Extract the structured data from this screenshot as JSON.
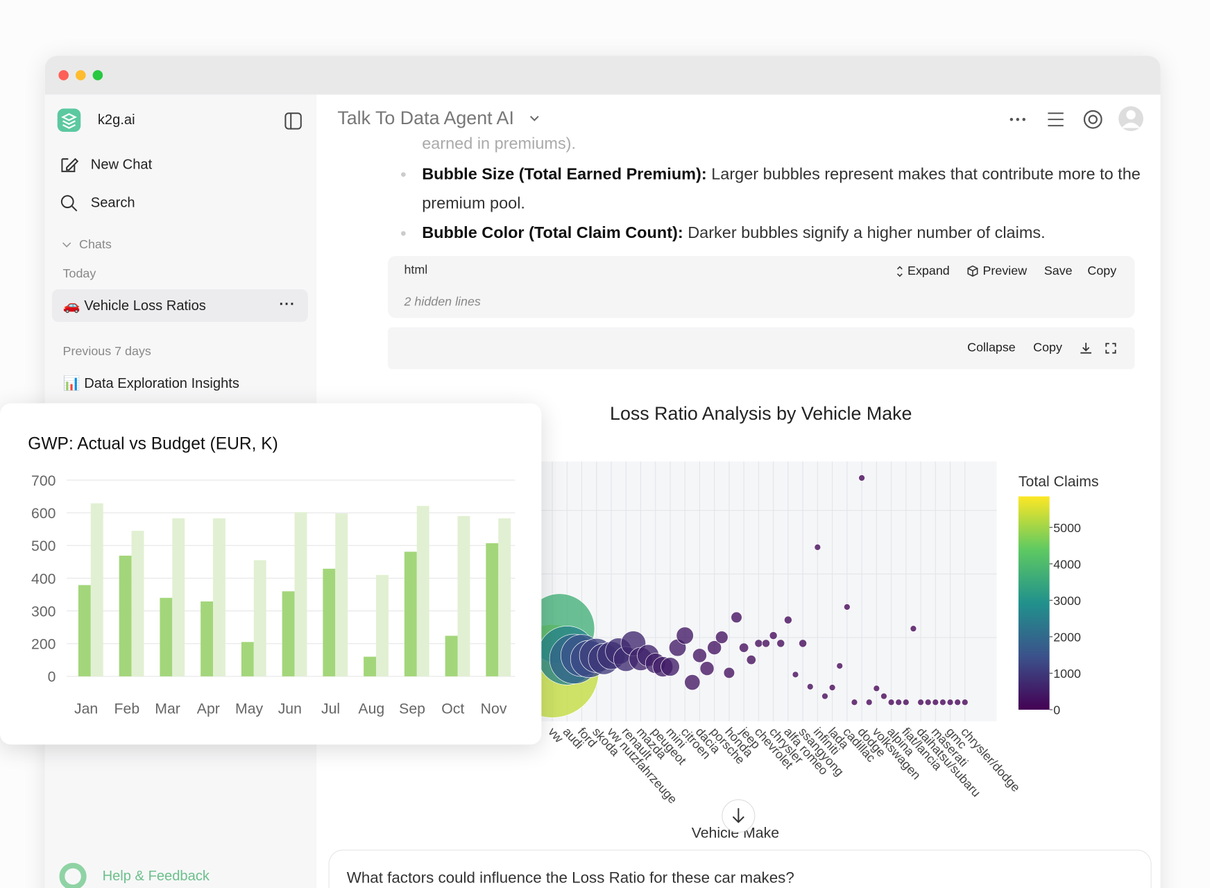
{
  "sidebar": {
    "brand": "k2g.ai",
    "new_chat": "New Chat",
    "search": "Search",
    "chats_heading": "Chats",
    "today_heading": "Today",
    "today_items": [
      "🚗 Vehicle Loss Ratios"
    ],
    "previous_heading": "Previous 7 days",
    "previous_items": [
      "📊 Data Exploration Insights"
    ],
    "help": "Help & Feedback"
  },
  "header": {
    "title": "Talk To Data Agent AI"
  },
  "message": {
    "partial": "earned in premiums).",
    "bullets": [
      {
        "term": "Bubble Size (Total Earned Premium):",
        "text": " Larger bubbles represent makes that contribute more to the premium pool."
      },
      {
        "term": "Bubble Color (Total Claim Count):",
        "text": " Darker bubbles signify a higher number of claims."
      }
    ]
  },
  "code_block": {
    "language": "html",
    "actions": [
      "Expand",
      "Preview",
      "Save",
      "Copy"
    ],
    "hidden": "2 hidden lines"
  },
  "preview_bar": {
    "actions": [
      "Collapse",
      "Copy"
    ]
  },
  "followup": "What factors could influence the Loss Ratio for these car makes?",
  "chart_data": [
    {
      "type": "bubble",
      "title": "Loss Ratio Analysis by Vehicle Make",
      "x_label": "Vehicle Make",
      "colorbar_title": "Total Claims",
      "categories": [
        "vw",
        null,
        "audi",
        null,
        "ford",
        null,
        "skoda",
        null,
        "vw nutzfahrzeuge",
        null,
        "renault",
        null,
        "mazda",
        null,
        "peugeot",
        null,
        "mini",
        null,
        "citroen",
        null,
        "dacia",
        null,
        "porsche",
        null,
        "honda",
        null,
        "jeep",
        null,
        "chevrolet",
        null,
        "chrysler",
        null,
        "alfa romeo",
        null,
        "ssangyong",
        null,
        "infiniti",
        null,
        "lada",
        null,
        "cadillac",
        null,
        "dodge",
        null,
        "volkswagen",
        null,
        "alpina",
        null,
        "fiat/lancia",
        null,
        "daihatsu/subaru",
        null,
        "maserati",
        null,
        "gmc",
        null,
        "chrysler/dodge"
      ],
      "series": [
        {
          "values": [
            0.58,
            1.07,
            0.76,
            0.72,
            0.76,
            0.72,
            0.76,
            0.72,
            0.76,
            0.81,
            0.72,
            0.9,
            0.72,
            0.76,
            0.67,
            0.63,
            0.63,
            0.85,
            0.99,
            0.45,
            0.76,
            0.61,
            0.85,
            0.97,
            0.56,
            1.2,
            0.85,
            0.71,
            0.9,
            0.9,
            0.99,
            0.9,
            1.17,
            0.54,
            0.9,
            0.4,
            2.01,
            0.29,
            0.39,
            0.64,
            1.32,
            0.22,
            2.81,
            0.22,
            0.38,
            0.29,
            0.22,
            0.22,
            0.22,
            1.07,
            0.22,
            0.22,
            0.22,
            0.22,
            0.22,
            0.22,
            0.22
          ],
          "sizes": [
            3600,
            2025,
            1444,
            1024,
            729,
            576,
            484,
            400,
            324,
            289,
            256,
            256,
            225,
            196,
            169,
            169,
            144,
            121,
            121,
            100,
            81,
            81,
            81,
            64,
            49,
            49,
            36,
            36,
            25,
            25,
            25,
            25,
            25,
            16,
            25,
            16,
            16,
            16,
            16,
            16,
            16,
            16,
            16,
            16,
            16,
            16,
            16,
            16,
            16,
            16,
            16,
            16,
            16,
            16,
            16,
            16,
            16
          ],
          "color_values": [
            5300,
            3700,
            2600,
            1900,
            1500,
            1300,
            1150,
            1000,
            900,
            820,
            760,
            700,
            640,
            600,
            560,
            520,
            480,
            440,
            420,
            380,
            350,
            330,
            310,
            290,
            260,
            240,
            210,
            195,
            180,
            165,
            150,
            140,
            130,
            120,
            110,
            100,
            90,
            80,
            72,
            65,
            58,
            50,
            45,
            40,
            35,
            30,
            26,
            22,
            18,
            15,
            12,
            10,
            8,
            6,
            5,
            4,
            3
          ]
        }
      ],
      "ylim": [
        0,
        3
      ],
      "clim": [
        0,
        5850
      ],
      "cticks": [
        0,
        1000,
        2000,
        3000,
        4000,
        5000
      ],
      "colorscale": [
        "#440154",
        "#3b528b",
        "#21918c",
        "#5ec962",
        "#fde725"
      ],
      "grid": true
    },
    {
      "type": "bar",
      "title": "GWP: Actual vs Budget (EUR, K)",
      "categories": [
        "Jan",
        "Feb",
        "Mar",
        "Apr",
        "May",
        "Jun",
        "Jul",
        "Aug",
        "Sep",
        "Oct",
        "Nov"
      ],
      "series": [
        {
          "color": "#a3d67a",
          "values": [
            379,
            469,
            340,
            329,
            205,
            360,
            429,
            160,
            481,
            224,
            507
          ]
        },
        {
          "color": "#e1f0d2",
          "values": [
            629,
            545,
            583,
            583,
            455,
            602,
            598,
            410,
            621,
            590,
            583
          ]
        }
      ],
      "ylim": [
        100,
        700
      ],
      "yticks": [
        {
          "value": 100,
          "label": "0"
        },
        200,
        300,
        400,
        500,
        600,
        700
      ],
      "grid": true
    }
  ]
}
